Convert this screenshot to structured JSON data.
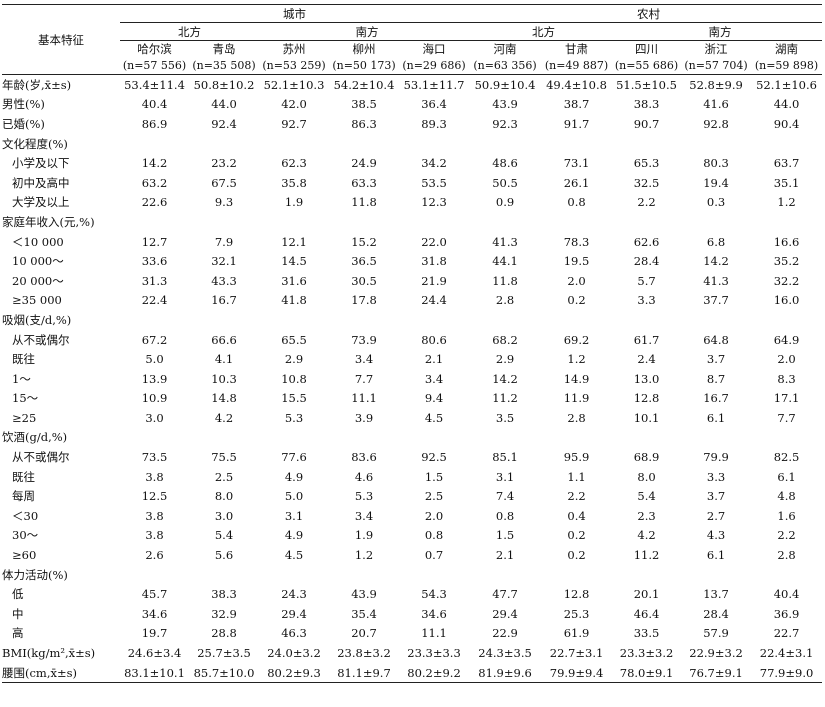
{
  "table": {
    "feature_header": "基本特征",
    "groups": [
      {
        "label": "城市",
        "sub": [
          {
            "label": "北方",
            "cols": [
              {
                "name": "哈尔滨",
                "n": "(n=57 556)"
              },
              {
                "name": "青岛",
                "n": "(n=35 508)"
              }
            ]
          },
          {
            "label": "南方",
            "cols": [
              {
                "name": "苏州",
                "n": "(n=53 259)"
              },
              {
                "name": "柳州",
                "n": "(n=50 173)"
              },
              {
                "name": "海口",
                "n": "(n=29 686)"
              }
            ]
          }
        ]
      },
      {
        "label": "农村",
        "sub": [
          {
            "label": "北方",
            "cols": [
              {
                "name": "河南",
                "n": "(n=63 356)"
              },
              {
                "name": "甘肃",
                "n": "(n=49 887)"
              }
            ]
          },
          {
            "label": "南方",
            "cols": [
              {
                "name": "四川",
                "n": "(n=55 686)"
              },
              {
                "name": "浙江",
                "n": "(n=57 704)"
              },
              {
                "name": "湖南",
                "n": "(n=59 898)"
              }
            ]
          }
        ]
      }
    ],
    "rows": [
      {
        "label": "年龄(岁,x̄±s)",
        "indent": false,
        "values": [
          "53.4±11.4",
          "50.8±10.2",
          "52.1±10.3",
          "54.2±10.4",
          "53.1±11.7",
          "50.9±10.4",
          "49.4±10.8",
          "51.5±10.5",
          "52.8±9.9",
          "52.1±10.6"
        ]
      },
      {
        "label": "男性(%)",
        "indent": false,
        "values": [
          "40.4",
          "44.0",
          "42.0",
          "38.5",
          "36.4",
          "43.9",
          "38.7",
          "38.3",
          "41.6",
          "44.0"
        ]
      },
      {
        "label": "已婚(%)",
        "indent": false,
        "values": [
          "86.9",
          "92.4",
          "92.7",
          "86.3",
          "89.3",
          "92.3",
          "91.7",
          "90.7",
          "92.8",
          "90.4"
        ]
      },
      {
        "label": "文化程度(%)",
        "indent": false,
        "values": [
          "",
          "",
          "",
          "",
          "",
          "",
          "",
          "",
          "",
          ""
        ]
      },
      {
        "label": "小学及以下",
        "indent": true,
        "values": [
          "14.2",
          "23.2",
          "62.3",
          "24.9",
          "34.2",
          "48.6",
          "73.1",
          "65.3",
          "80.3",
          "63.7"
        ]
      },
      {
        "label": "初中及高中",
        "indent": true,
        "values": [
          "63.2",
          "67.5",
          "35.8",
          "63.3",
          "53.5",
          "50.5",
          "26.1",
          "32.5",
          "19.4",
          "35.1"
        ]
      },
      {
        "label": "大学及以上",
        "indent": true,
        "values": [
          "22.6",
          "9.3",
          "1.9",
          "11.8",
          "12.3",
          "0.9",
          "0.8",
          "2.2",
          "0.3",
          "1.2"
        ]
      },
      {
        "label": "家庭年收入(元,%)",
        "indent": false,
        "values": [
          "",
          "",
          "",
          "",
          "",
          "",
          "",
          "",
          "",
          ""
        ]
      },
      {
        "label": "＜10 000",
        "indent": true,
        "values": [
          "12.7",
          "7.9",
          "12.1",
          "15.2",
          "22.0",
          "41.3",
          "78.3",
          "62.6",
          "6.8",
          "16.6"
        ]
      },
      {
        "label": "10 000～",
        "indent": true,
        "values": [
          "33.6",
          "32.1",
          "14.5",
          "36.5",
          "31.8",
          "44.1",
          "19.5",
          "28.4",
          "14.2",
          "35.2"
        ]
      },
      {
        "label": "20 000～",
        "indent": true,
        "values": [
          "31.3",
          "43.3",
          "31.6",
          "30.5",
          "21.9",
          "11.8",
          "2.0",
          "5.7",
          "41.3",
          "32.2"
        ]
      },
      {
        "label": "≥35 000",
        "indent": true,
        "values": [
          "22.4",
          "16.7",
          "41.8",
          "17.8",
          "24.4",
          "2.8",
          "0.2",
          "3.3",
          "37.7",
          "16.0"
        ]
      },
      {
        "label": "吸烟(支/d,%)",
        "indent": false,
        "values": [
          "",
          "",
          "",
          "",
          "",
          "",
          "",
          "",
          "",
          ""
        ]
      },
      {
        "label": "从不或偶尔",
        "indent": true,
        "values": [
          "67.2",
          "66.6",
          "65.5",
          "73.9",
          "80.6",
          "68.2",
          "69.2",
          "61.7",
          "64.8",
          "64.9"
        ]
      },
      {
        "label": "既往",
        "indent": true,
        "values": [
          "5.0",
          "4.1",
          "2.9",
          "3.4",
          "2.1",
          "2.9",
          "1.2",
          "2.4",
          "3.7",
          "2.0"
        ]
      },
      {
        "label": "1～",
        "indent": true,
        "values": [
          "13.9",
          "10.3",
          "10.8",
          "7.7",
          "3.4",
          "14.2",
          "14.9",
          "13.0",
          "8.7",
          "8.3"
        ]
      },
      {
        "label": "15～",
        "indent": true,
        "values": [
          "10.9",
          "14.8",
          "15.5",
          "11.1",
          "9.4",
          "11.2",
          "11.9",
          "12.8",
          "16.7",
          "17.1"
        ]
      },
      {
        "label": "≥25",
        "indent": true,
        "values": [
          "3.0",
          "4.2",
          "5.3",
          "3.9",
          "4.5",
          "3.5",
          "2.8",
          "10.1",
          "6.1",
          "7.7"
        ]
      },
      {
        "label": "饮酒(g/d,%)",
        "indent": false,
        "values": [
          "",
          "",
          "",
          "",
          "",
          "",
          "",
          "",
          "",
          ""
        ]
      },
      {
        "label": "从不或偶尔",
        "indent": true,
        "values": [
          "73.5",
          "75.5",
          "77.6",
          "83.6",
          "92.5",
          "85.1",
          "95.9",
          "68.9",
          "79.9",
          "82.5"
        ]
      },
      {
        "label": "既往",
        "indent": true,
        "values": [
          "3.8",
          "2.5",
          "4.9",
          "4.6",
          "1.5",
          "3.1",
          "1.1",
          "8.0",
          "3.3",
          "6.1"
        ]
      },
      {
        "label": "每周",
        "indent": true,
        "values": [
          "12.5",
          "8.0",
          "5.0",
          "5.3",
          "2.5",
          "7.4",
          "2.2",
          "5.4",
          "3.7",
          "4.8"
        ]
      },
      {
        "label": "＜30",
        "indent": true,
        "values": [
          "3.8",
          "3.0",
          "3.1",
          "3.4",
          "2.0",
          "0.8",
          "0.4",
          "2.3",
          "2.7",
          "1.6"
        ]
      },
      {
        "label": "30～",
        "indent": true,
        "values": [
          "3.8",
          "5.4",
          "4.9",
          "1.9",
          "0.8",
          "1.5",
          "0.2",
          "4.2",
          "4.3",
          "2.2"
        ]
      },
      {
        "label": "≥60",
        "indent": true,
        "values": [
          "2.6",
          "5.6",
          "4.5",
          "1.2",
          "0.7",
          "2.1",
          "0.2",
          "11.2",
          "6.1",
          "2.8"
        ]
      },
      {
        "label": "体力活动(%)",
        "indent": false,
        "values": [
          "",
          "",
          "",
          "",
          "",
          "",
          "",
          "",
          "",
          ""
        ]
      },
      {
        "label": "低",
        "indent": true,
        "values": [
          "45.7",
          "38.3",
          "24.3",
          "43.9",
          "54.3",
          "47.7",
          "12.8",
          "20.1",
          "13.7",
          "40.4"
        ]
      },
      {
        "label": "中",
        "indent": true,
        "values": [
          "34.6",
          "32.9",
          "29.4",
          "35.4",
          "34.6",
          "29.4",
          "25.3",
          "46.4",
          "28.4",
          "36.9"
        ]
      },
      {
        "label": "高",
        "indent": true,
        "values": [
          "19.7",
          "28.8",
          "46.3",
          "20.7",
          "11.1",
          "22.9",
          "61.9",
          "33.5",
          "57.9",
          "22.7"
        ]
      },
      {
        "label": "BMI(kg/m²,x̄±s)",
        "indent": false,
        "values": [
          "24.6±3.4",
          "25.7±3.5",
          "24.0±3.2",
          "23.8±3.2",
          "23.3±3.3",
          "24.3±3.5",
          "22.7±3.1",
          "23.3±3.2",
          "22.9±3.2",
          "22.4±3.1"
        ]
      },
      {
        "label": "腰围(cm,x̄±s)",
        "indent": false,
        "values": [
          "83.1±10.1",
          "85.7±10.0",
          "80.2±9.3",
          "81.1±9.7",
          "80.2±9.2",
          "81.9±9.6",
          "79.9±9.4",
          "78.0±9.1",
          "76.7±9.1",
          "77.9±9.0"
        ]
      }
    ]
  }
}
